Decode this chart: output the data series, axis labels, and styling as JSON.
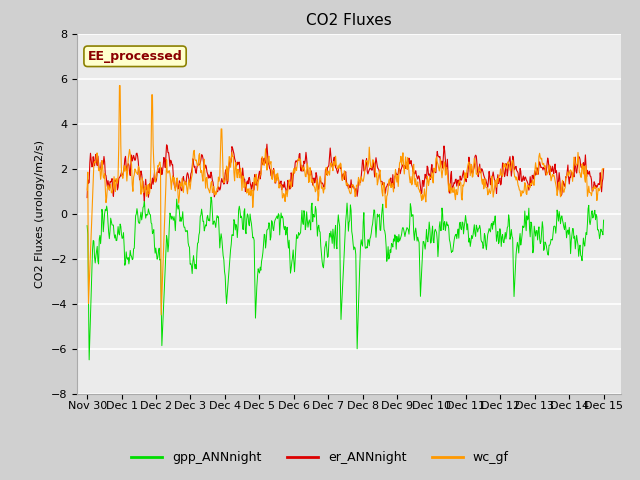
{
  "title": "CO2 Fluxes",
  "ylabel": "CO2 Fluxes (urology/m2/s)",
  "xlim_days": [
    -0.3,
    15.5
  ],
  "ylim": [
    -8,
    8
  ],
  "yticks": [
    -8,
    -6,
    -4,
    -2,
    0,
    2,
    4,
    6,
    8
  ],
  "xtick_labels": [
    "Nov 30",
    "Dec 1",
    "Dec 2",
    "Dec 3",
    "Dec 4",
    "Dec 5",
    "Dec 6",
    "Dec 7",
    "Dec 8",
    "Dec 9",
    "Dec 10",
    "Dec 11",
    "Dec 12",
    "Dec 13",
    "Dec 14",
    "Dec 15"
  ],
  "xtick_positions": [
    0,
    1,
    2,
    3,
    4,
    5,
    6,
    7,
    8,
    9,
    10,
    11,
    12,
    13,
    14,
    15
  ],
  "colors": {
    "gpp": "#00dd00",
    "er": "#dd0000",
    "wc": "#ff9900"
  },
  "legend_labels": [
    "gpp_ANNnight",
    "er_ANNnight",
    "wc_gf"
  ],
  "annotation_text": "EE_processed",
  "fig_bg": "#d0d0d0",
  "plot_bg": "#ebebeb",
  "grid_color": "#ffffff",
  "title_fontsize": 11,
  "label_fontsize": 8,
  "tick_fontsize": 8,
  "legend_fontsize": 9
}
